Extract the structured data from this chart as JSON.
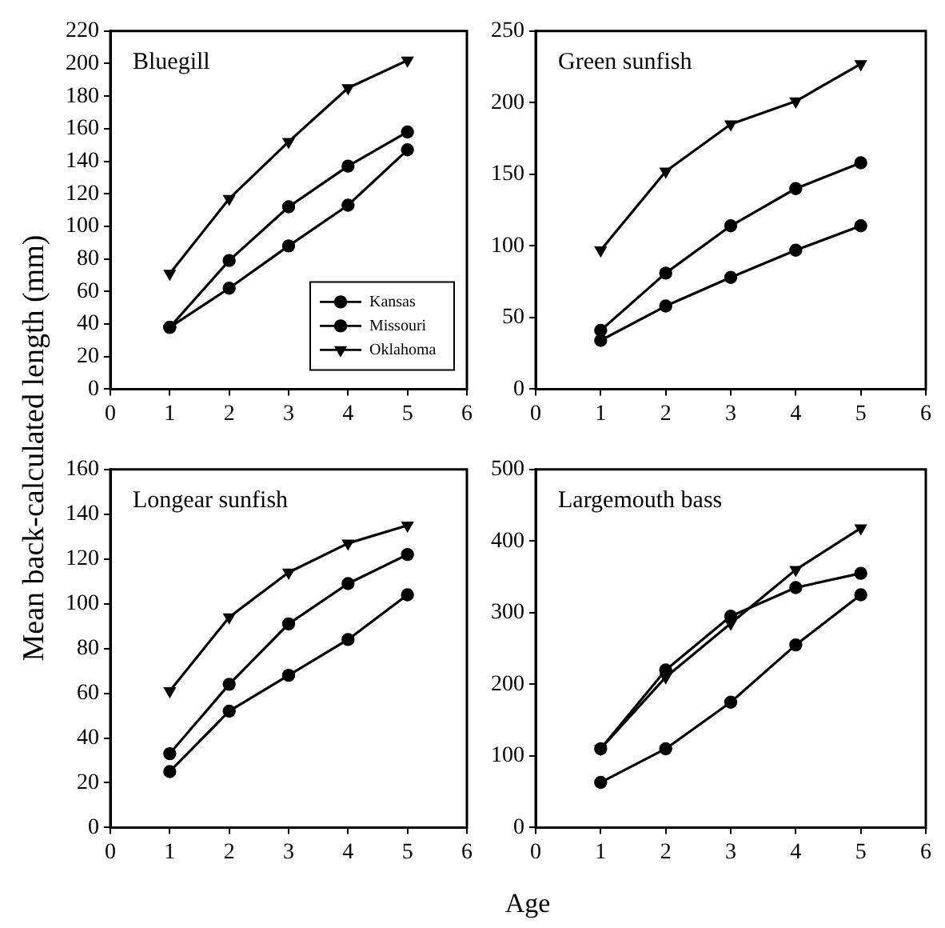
{
  "chart_data": [
    {
      "type": "line",
      "title": "Bluegill",
      "xlabel": "Age",
      "ylabel": "Mean back-calculated length (mm)",
      "x": [
        1,
        2,
        3,
        4,
        5
      ],
      "xlim": [
        0,
        6
      ],
      "xticks": [
        0,
        1,
        2,
        3,
        4,
        5,
        6
      ],
      "ylim": [
        0,
        220
      ],
      "yticks": [
        0,
        20,
        40,
        60,
        80,
        100,
        120,
        140,
        160,
        180,
        200,
        220
      ],
      "grid": false,
      "legend": "bottom right",
      "series": [
        {
          "name": "Kansas",
          "color": "#000000",
          "marker": "circle",
          "values": [
            38,
            62,
            88,
            113,
            147
          ]
        },
        {
          "name": "Missouri",
          "color": "#000000",
          "marker": "circle",
          "values": [
            38,
            79,
            112,
            137,
            158
          ]
        },
        {
          "name": "Oklahoma",
          "color": "#000000",
          "marker": "triangle",
          "values": [
            71,
            117,
            152,
            185,
            202
          ]
        }
      ]
    },
    {
      "type": "line",
      "title": "Green sunfish",
      "x": [
        1,
        2,
        3,
        4,
        5
      ],
      "xlim": [
        0,
        6
      ],
      "xticks": [
        0,
        1,
        2,
        3,
        4,
        5,
        6
      ],
      "ylim": [
        0,
        250
      ],
      "yticks": [
        0,
        50,
        100,
        150,
        200,
        250
      ],
      "grid": false,
      "series": [
        {
          "color": "#000000",
          "marker": "circle",
          "values": [
            34,
            58,
            78,
            97,
            114
          ]
        },
        {
          "color": "#000000",
          "marker": "circle",
          "values": [
            41,
            81,
            114,
            140,
            158
          ]
        },
        {
          "color": "#000000",
          "marker": "triangle",
          "values": [
            97,
            152,
            185,
            201,
            227
          ]
        }
      ]
    },
    {
      "type": "line",
      "title": "Longear sunfish",
      "x": [
        1,
        2,
        3,
        4,
        5
      ],
      "xlim": [
        0,
        6
      ],
      "xticks": [
        0,
        1,
        2,
        3,
        4,
        5,
        6
      ],
      "ylim": [
        0,
        160
      ],
      "yticks": [
        0,
        20,
        40,
        60,
        80,
        100,
        120,
        140,
        160
      ],
      "grid": false,
      "series": [
        {
          "color": "#000000",
          "marker": "circle",
          "values": [
            25,
            52,
            68,
            84,
            104
          ]
        },
        {
          "color": "#000000",
          "marker": "circle",
          "values": [
            33,
            64,
            91,
            109,
            122
          ]
        },
        {
          "color": "#000000",
          "marker": "triangle",
          "values": [
            61,
            94,
            114,
            127,
            135
          ]
        }
      ]
    },
    {
      "type": "line",
      "title": "Largemouth bass",
      "x": [
        1,
        2,
        3,
        4,
        5
      ],
      "xlim": [
        0,
        6
      ],
      "xticks": [
        0,
        1,
        2,
        3,
        4,
        5,
        6
      ],
      "ylim": [
        0,
        500
      ],
      "yticks": [
        0,
        100,
        200,
        300,
        400,
        500
      ],
      "grid": false,
      "series": [
        {
          "color": "#000000",
          "marker": "circle",
          "values": [
            63,
            110,
            175,
            255,
            325
          ]
        },
        {
          "color": "#000000",
          "marker": "circle",
          "values": [
            110,
            220,
            295,
            335,
            355
          ]
        },
        {
          "color": "#000000",
          "marker": "triangle",
          "values": [
            110,
            210,
            285,
            360,
            418
          ]
        }
      ]
    }
  ]
}
